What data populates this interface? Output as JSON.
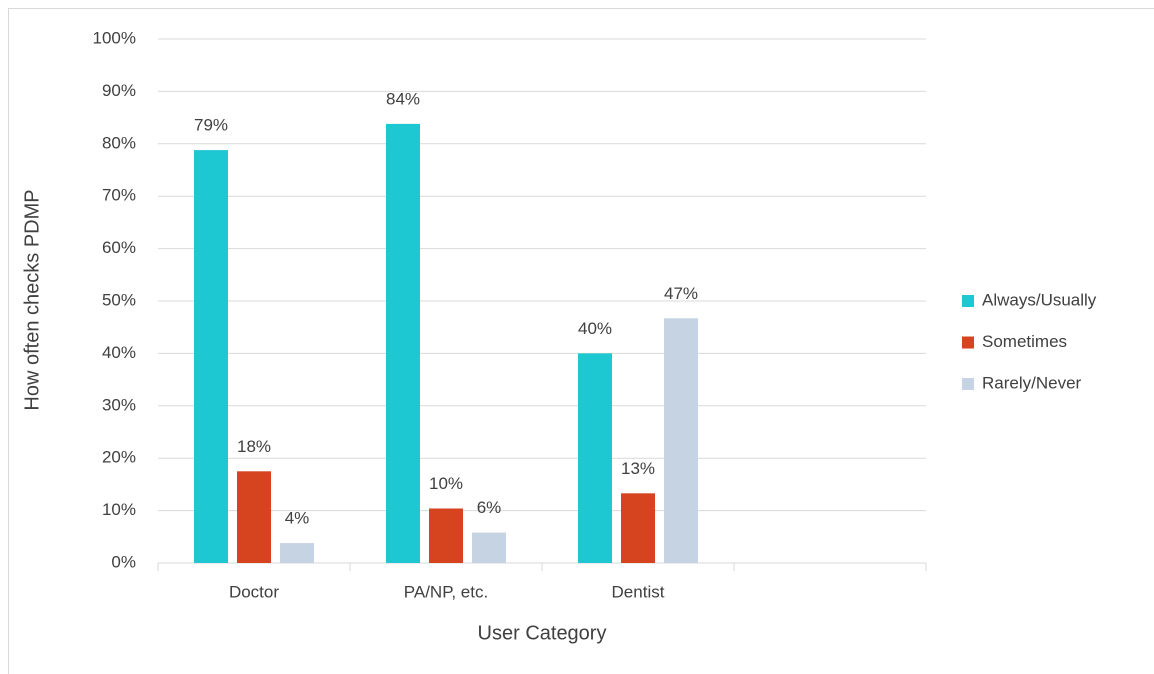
{
  "chart_data": {
    "type": "bar",
    "x_label": "User Category",
    "y_label": "How often checks PDMP",
    "categories": [
      "Doctor",
      "PA/NP, etc.",
      "Dentist",
      null
    ],
    "series": [
      {
        "name": "Always/Usually",
        "color": "#1ec8d2",
        "values": [
          78.8,
          83.8,
          40,
          null
        ],
        "value_labels": [
          "79%",
          "84%",
          "40%",
          null
        ]
      },
      {
        "name": "Sometimes",
        "color": "#d6441f",
        "values": [
          17.5,
          10.4,
          13.3,
          null
        ],
        "value_labels": [
          "18%",
          "10%",
          "13%",
          null
        ]
      },
      {
        "name": "Rarely/Never",
        "color": "#c5d3e2",
        "values": [
          3.8,
          5.8,
          46.7,
          null
        ],
        "value_labels": [
          "4%",
          "6%",
          "47%",
          null
        ]
      }
    ],
    "ylim": [
      0,
      100
    ],
    "yticks": [
      {
        "value": 0,
        "label": "0%"
      },
      {
        "value": 10,
        "label": "10%"
      },
      {
        "value": 20,
        "label": "20%"
      },
      {
        "value": 30,
        "label": "30%"
      },
      {
        "value": 40,
        "label": "40%"
      },
      {
        "value": 50,
        "label": "50%"
      },
      {
        "value": 60,
        "label": "60%"
      },
      {
        "value": 70,
        "label": "70%"
      },
      {
        "value": 80,
        "label": "80%"
      },
      {
        "value": 90,
        "label": "90%"
      },
      {
        "value": 100,
        "label": "100%"
      }
    ],
    "grid": true,
    "legend": "right"
  }
}
